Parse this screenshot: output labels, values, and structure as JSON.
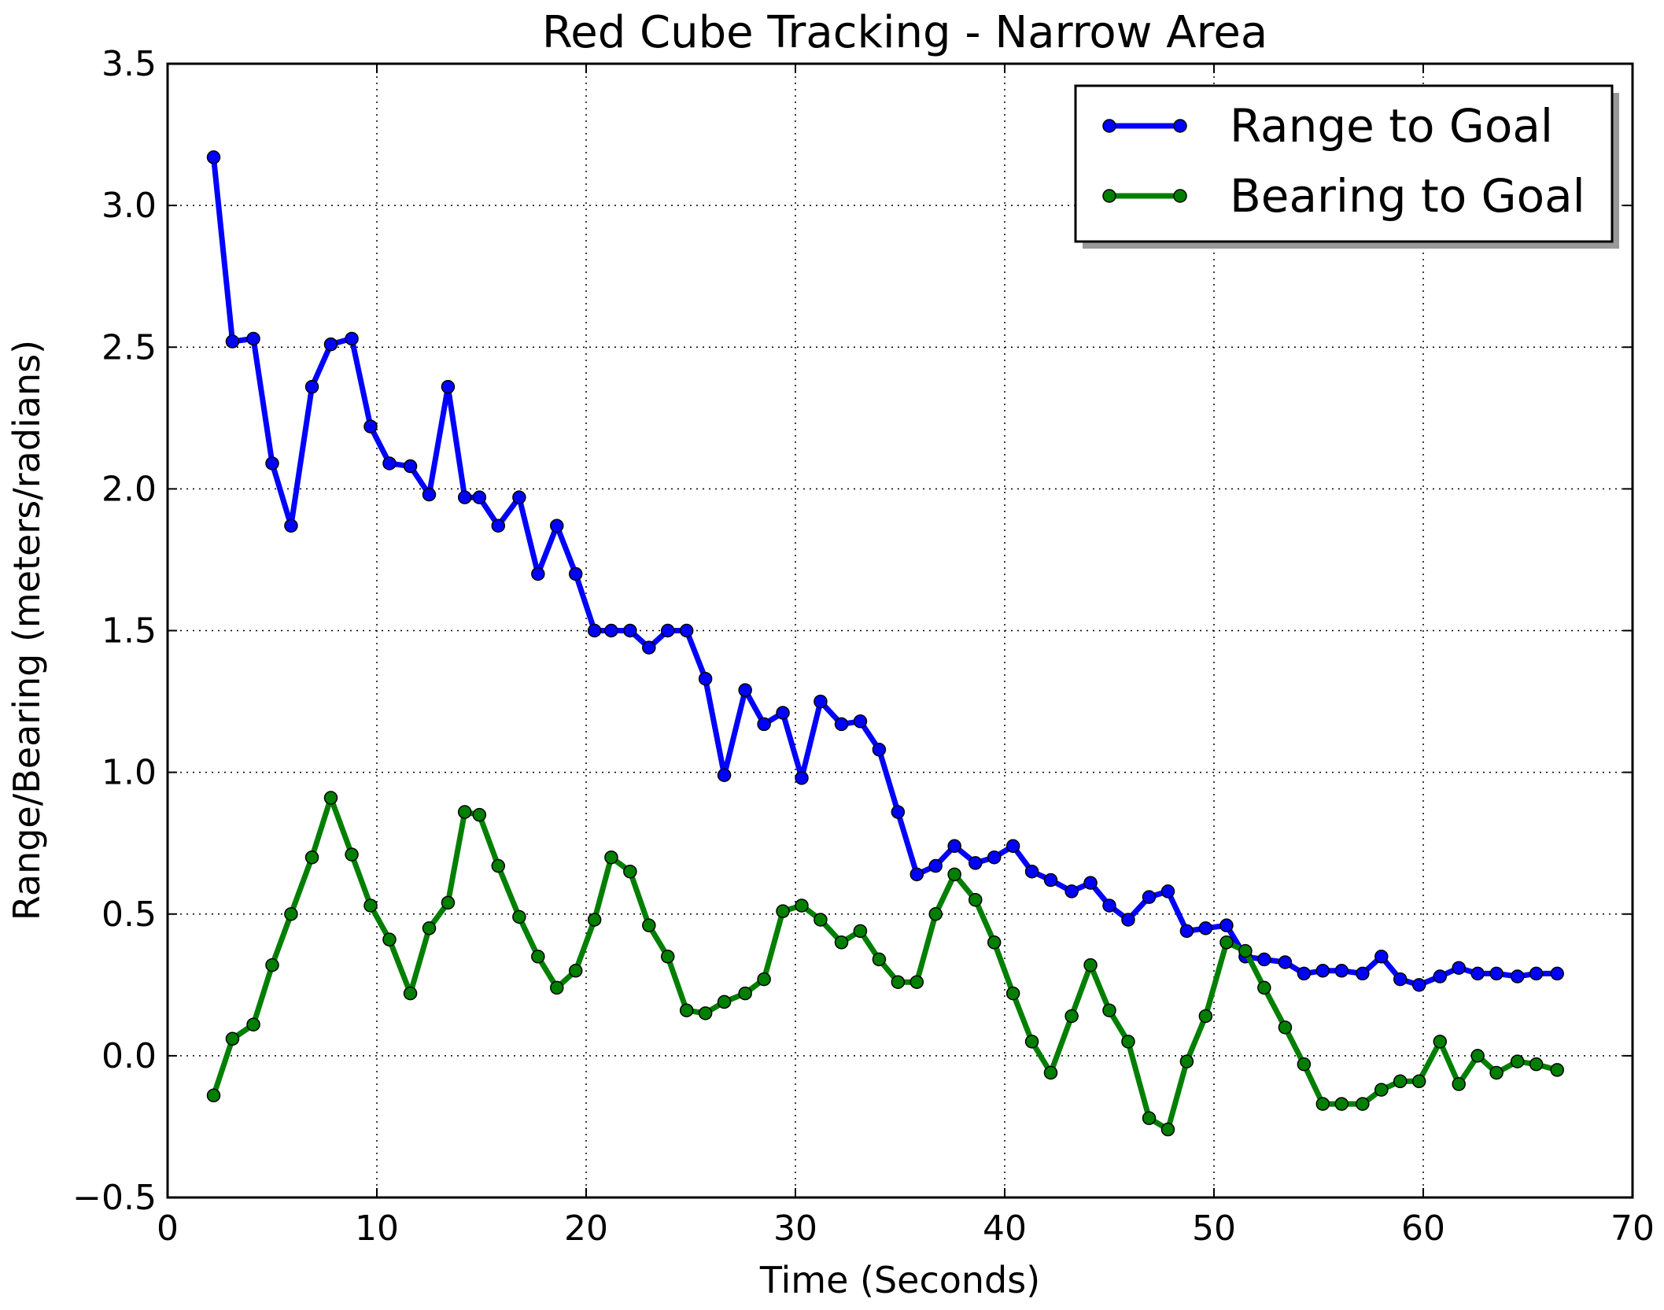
{
  "chart_data": {
    "type": "line",
    "title": "Red Cube Tracking - Narrow Area",
    "xlabel": "Time (Seconds)",
    "ylabel": "Range/Bearing (meters/radians)",
    "xlim": [
      0,
      70
    ],
    "ylim": [
      -0.5,
      3.5
    ],
    "xticks": [
      0,
      10,
      20,
      30,
      40,
      50,
      60,
      70
    ],
    "yticks": [
      -0.5,
      0.0,
      0.5,
      1.0,
      1.5,
      2.0,
      2.5,
      3.0,
      3.5
    ],
    "xtick_labels": [
      "0",
      "10",
      "20",
      "30",
      "40",
      "50",
      "60",
      "70"
    ],
    "ytick_labels": [
      "−0.5",
      "0.0",
      "0.5",
      "1.0",
      "1.5",
      "2.0",
      "2.5",
      "3.0",
      "3.5"
    ],
    "grid": true,
    "legend_position": "top-right",
    "x": [
      2.2,
      3.1,
      4.1,
      5.0,
      5.9,
      6.9,
      7.8,
      8.8,
      9.7,
      10.6,
      11.6,
      12.5,
      13.4,
      14.2,
      14.9,
      15.8,
      16.8,
      17.7,
      18.6,
      19.5,
      20.4,
      21.2,
      22.1,
      23.0,
      23.9,
      24.8,
      25.7,
      26.6,
      27.6,
      28.5,
      29.4,
      30.3,
      31.2,
      32.2,
      33.1,
      34.0,
      34.9,
      35.8,
      36.7,
      37.6,
      38.6,
      39.5,
      40.4,
      41.3,
      42.2,
      43.2,
      44.1,
      45.0,
      45.9,
      46.9,
      47.8,
      48.7,
      49.6,
      50.6,
      51.5,
      52.4,
      53.4,
      54.3,
      55.2,
      56.1,
      57.1,
      58.0,
      58.9,
      59.8,
      60.8,
      61.7,
      62.6,
      63.5,
      64.5,
      65.4,
      66.4
    ],
    "series": [
      {
        "name": "Range to Goal",
        "color": "#0000ff",
        "values": [
          3.17,
          2.52,
          2.53,
          2.09,
          1.87,
          2.36,
          2.51,
          2.53,
          2.22,
          2.09,
          2.08,
          1.98,
          2.36,
          1.97,
          1.97,
          1.87,
          1.97,
          1.7,
          1.87,
          1.7,
          1.5,
          1.5,
          1.5,
          1.44,
          1.5,
          1.5,
          1.33,
          0.99,
          1.29,
          1.17,
          1.21,
          0.98,
          1.25,
          1.17,
          1.18,
          1.08,
          0.86,
          0.64,
          0.67,
          0.74,
          0.68,
          0.7,
          0.74,
          0.65,
          0.62,
          0.58,
          0.61,
          0.53,
          0.48,
          0.56,
          0.58,
          0.44,
          0.45,
          0.46,
          0.35,
          0.34,
          0.33,
          0.29,
          0.3,
          0.3,
          0.29,
          0.35,
          0.27,
          0.25,
          0.28,
          0.31,
          0.29,
          0.29,
          0.28,
          0.29,
          0.29
        ]
      },
      {
        "name": "Bearing to Goal",
        "color": "#007f00",
        "values": [
          -0.14,
          0.06,
          0.11,
          0.32,
          0.5,
          0.7,
          0.91,
          0.71,
          0.53,
          0.41,
          0.22,
          0.45,
          0.54,
          0.86,
          0.85,
          0.67,
          0.49,
          0.35,
          0.24,
          0.3,
          0.48,
          0.7,
          0.65,
          0.46,
          0.35,
          0.16,
          0.15,
          0.19,
          0.22,
          0.27,
          0.51,
          0.53,
          0.48,
          0.4,
          0.44,
          0.34,
          0.26,
          0.26,
          0.5,
          0.64,
          0.55,
          0.4,
          0.22,
          0.05,
          -0.06,
          0.14,
          0.32,
          0.16,
          0.05,
          -0.22,
          -0.26,
          -0.02,
          0.14,
          0.4,
          0.37,
          0.24,
          0.1,
          -0.03,
          -0.17,
          -0.17,
          -0.17,
          -0.12,
          -0.09,
          -0.09,
          0.05,
          -0.1,
          0.0,
          -0.06,
          -0.02,
          -0.03,
          -0.05
        ]
      }
    ]
  }
}
